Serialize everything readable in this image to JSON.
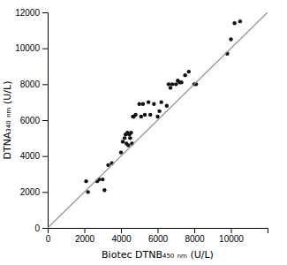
{
  "chart_data": {
    "type": "scatter",
    "xlabel": "Biotec DTNB₄₅₀ ₙₘ (U/L)",
    "ylabel": "DTNA₃₄₀ ₙₘ (U/L)",
    "xlim": [
      0,
      12000
    ],
    "ylim": [
      0,
      12000
    ],
    "xticks": [
      0,
      2000,
      4000,
      6000,
      8000,
      10000
    ],
    "yticks": [
      0,
      2000,
      4000,
      6000,
      8000,
      10000,
      12000
    ],
    "series": [
      {
        "type": "scatter",
        "color": "#111111",
        "x": [
          2100,
          2200,
          2700,
          2800,
          3000,
          3100,
          3300,
          3500,
          4000,
          4100,
          4200,
          4250,
          4300,
          4350,
          4400,
          4450,
          4500,
          4550,
          4600,
          4650,
          4700,
          4800,
          5000,
          5100,
          5200,
          5300,
          5500,
          5600,
          5800,
          6000,
          6100,
          6200,
          6500,
          6600,
          6700,
          6800,
          7000,
          7100,
          7200,
          7300,
          7500,
          7700,
          8000,
          8100,
          9800,
          10000,
          10200,
          10500
        ],
        "values": [
          2600,
          2000,
          2600,
          2700,
          2700,
          2100,
          3500,
          3600,
          4200,
          4800,
          5000,
          5200,
          4700,
          5300,
          4600,
          5200,
          5000,
          5300,
          4700,
          6200,
          6200,
          6300,
          6900,
          6200,
          6900,
          6300,
          7000,
          6300,
          6900,
          6200,
          6500,
          7000,
          6800,
          8000,
          7800,
          8000,
          8000,
          8200,
          8100,
          8100,
          8500,
          8700,
          8000,
          8000,
          9700,
          10500,
          11400,
          11500
        ]
      },
      {
        "type": "line",
        "color": "#888888",
        "x": [
          0,
          12000
        ],
        "values": [
          0,
          12000
        ]
      }
    ]
  }
}
